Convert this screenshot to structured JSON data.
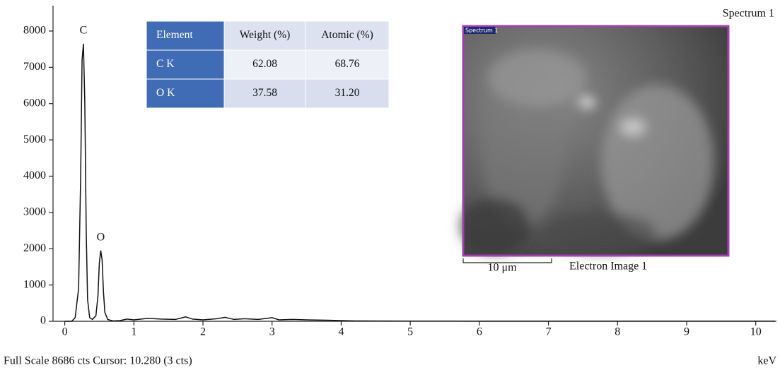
{
  "chart_data": {
    "type": "line",
    "title": "Spectrum 1",
    "x_label": "keV",
    "x": [
      0,
      0.1,
      0.15,
      0.2,
      0.23,
      0.25,
      0.27,
      0.29,
      0.31,
      0.33,
      0.36,
      0.4,
      0.45,
      0.48,
      0.5,
      0.52,
      0.54,
      0.56,
      0.58,
      0.62,
      0.7,
      0.8,
      0.9,
      1.0,
      1.2,
      1.4,
      1.6,
      1.75,
      1.85,
      2.0,
      2.2,
      2.32,
      2.45,
      2.6,
      2.8,
      3.0,
      3.1,
      3.3,
      3.5,
      3.8,
      4.0,
      4.2,
      5,
      6,
      7,
      8,
      9,
      10,
      10.28
    ],
    "series": [
      {
        "name": "Spectrum 1",
        "color": "#111111",
        "values": [
          0,
          0,
          100,
          900,
          4000,
          7200,
          7650,
          6000,
          2500,
          600,
          100,
          50,
          150,
          700,
          1600,
          1950,
          1700,
          800,
          250,
          50,
          10,
          20,
          60,
          40,
          80,
          60,
          50,
          120,
          60,
          40,
          70,
          110,
          50,
          70,
          50,
          100,
          40,
          50,
          40,
          30,
          20,
          10,
          5,
          3,
          3,
          3,
          3,
          3,
          3
        ]
      }
    ],
    "annotations": [
      {
        "text": "C",
        "x": 0.27,
        "y": 7650
      },
      {
        "text": "O",
        "x": 0.52,
        "y": 1950
      }
    ],
    "xlim": [
      -0.17,
      10.3
    ],
    "ylim": [
      0,
      8700
    ],
    "xticks": [
      0,
      1,
      2,
      3,
      4,
      5,
      6,
      7,
      8,
      9,
      10
    ],
    "yticks": [
      0,
      1000,
      2000,
      3000,
      4000,
      5000,
      6000,
      7000,
      8000
    ]
  },
  "table": {
    "header": [
      "Element",
      "Weight (%)",
      "Atomic (%)"
    ],
    "rows": [
      [
        "C K",
        "62.08",
        "68.76"
      ],
      [
        "O K",
        "37.58",
        "31.20"
      ]
    ]
  },
  "image": {
    "tag": "Spectrum 1",
    "scale": "10 μm",
    "caption": "Electron Image 1"
  },
  "footer": {
    "status": "Full Scale 8686 cts Cursor: 10.280 (3 cts)"
  }
}
